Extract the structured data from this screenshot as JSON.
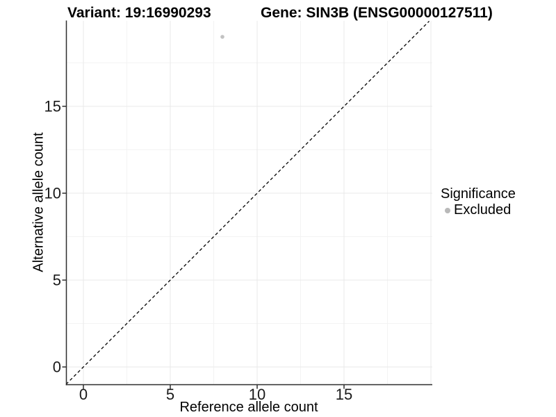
{
  "titles": {
    "variant": "Variant: 19:16990293",
    "gene": "Gene: SIN3B (ENSG00000127511)"
  },
  "axes": {
    "x_label": "Reference allele count",
    "y_label": "Alternative allele count"
  },
  "legend": {
    "title": "Significance",
    "items": [
      {
        "label": "Excluded",
        "color": "#b9b9b9"
      }
    ]
  },
  "colors": {
    "point": "#c2c2c2",
    "legend_dot": "#b9b9b9",
    "axis_line": "#2e2e2e",
    "tick_text": "#1a1a1a",
    "grid_major": "#e8e8e8",
    "grid_minor": "#f3f3f3",
    "reference_line": "#000000",
    "background": "#ffffff"
  },
  "chart_data": {
    "type": "scatter",
    "title": "Variant: 19:16990293   Gene: SIN3B (ENSG00000127511)",
    "xlabel": "Reference allele count",
    "ylabel": "Alternative allele count",
    "xlim": [
      -1,
      20.1
    ],
    "ylim": [
      -1,
      19.9
    ],
    "x_breaks": [
      0,
      5,
      10,
      15
    ],
    "y_breaks": [
      0,
      5,
      10,
      15
    ],
    "x_grid_major": [
      0,
      5,
      10,
      15,
      20
    ],
    "y_grid_major": [
      0,
      5,
      10,
      15
    ],
    "x_grid_minor": [
      2.5,
      7.5,
      12.5,
      17.5
    ],
    "y_grid_minor": [
      2.5,
      7.5,
      12.5,
      17.5
    ],
    "grid": true,
    "legend_position": "right",
    "series": [
      {
        "name": "Excluded",
        "color": "#c2c2c2",
        "points": [
          {
            "x": 8,
            "y": 19
          }
        ]
      }
    ],
    "reference_line": {
      "type": "identity",
      "slope": 1,
      "intercept": 0,
      "linetype": "dashed",
      "color": "#000000"
    }
  }
}
